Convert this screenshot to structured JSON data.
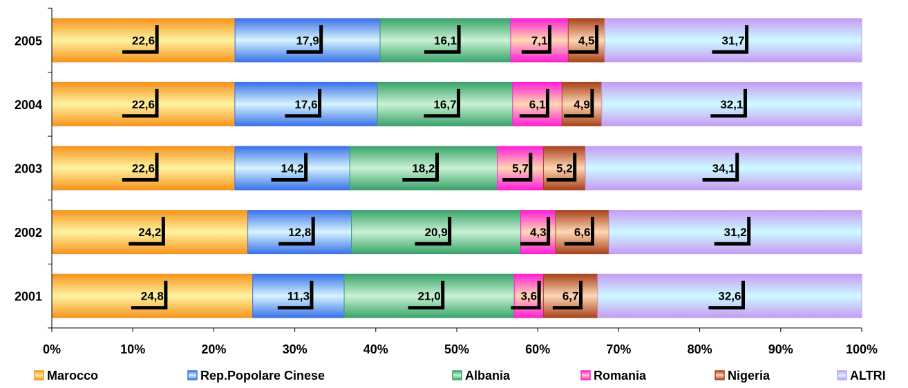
{
  "chart_data": {
    "type": "bar",
    "orientation": "horizontal",
    "stacked": "percent",
    "categories": [
      "2005",
      "2004",
      "2003",
      "2002",
      "2001"
    ],
    "series": [
      {
        "name": "Marocco",
        "values": [
          22.6,
          22.6,
          22.6,
          24.2,
          24.8
        ],
        "labels": [
          "22,6",
          "22,6",
          "22,6",
          "24,2",
          "24,8"
        ],
        "colors": [
          "#f7941d",
          "#fff3a0"
        ]
      },
      {
        "name": "Rep.Popolare Cinese",
        "values": [
          17.9,
          17.6,
          14.2,
          12.8,
          11.3
        ],
        "labels": [
          "17,9",
          "17,6",
          "14,2",
          "12,8",
          "11,3"
        ],
        "colors": [
          "#3b72e8",
          "#d6f4ff"
        ]
      },
      {
        "name": "Albania",
        "values": [
          16.1,
          16.7,
          18.2,
          20.9,
          21.0
        ],
        "labels": [
          "16,1",
          "16,7",
          "18,2",
          "20,9",
          "21,0"
        ],
        "colors": [
          "#3aa36a",
          "#c9f2d2"
        ]
      },
      {
        "name": "Romania",
        "values": [
          7.1,
          6.1,
          5.7,
          4.3,
          3.6
        ],
        "labels": [
          "7,1",
          "6,1",
          "5,7",
          "4,3",
          "3,6"
        ],
        "colors": [
          "#ff1fd7",
          "#ffd9b0"
        ]
      },
      {
        "name": "Nigeria",
        "values": [
          4.5,
          4.9,
          5.2,
          6.6,
          6.7
        ],
        "labels": [
          "4,5",
          "4,9",
          "5,2",
          "6,6",
          "6,7"
        ],
        "colors": [
          "#a8431c",
          "#ffd7b4"
        ]
      },
      {
        "name": "ALTRI",
        "values": [
          31.7,
          32.1,
          34.1,
          31.2,
          32.6
        ],
        "labels": [
          "31,7",
          "32,1",
          "34,1",
          "31,2",
          "32,6"
        ],
        "colors": [
          "#c59cf4",
          "#ccfbff"
        ]
      }
    ],
    "xlim": [
      0,
      100
    ],
    "xticks": [
      "0%",
      "10%",
      "20%",
      "30%",
      "40%",
      "50%",
      "60%",
      "70%",
      "80%",
      "90%",
      "100%"
    ],
    "grid": false,
    "legend_position": "bottom"
  }
}
